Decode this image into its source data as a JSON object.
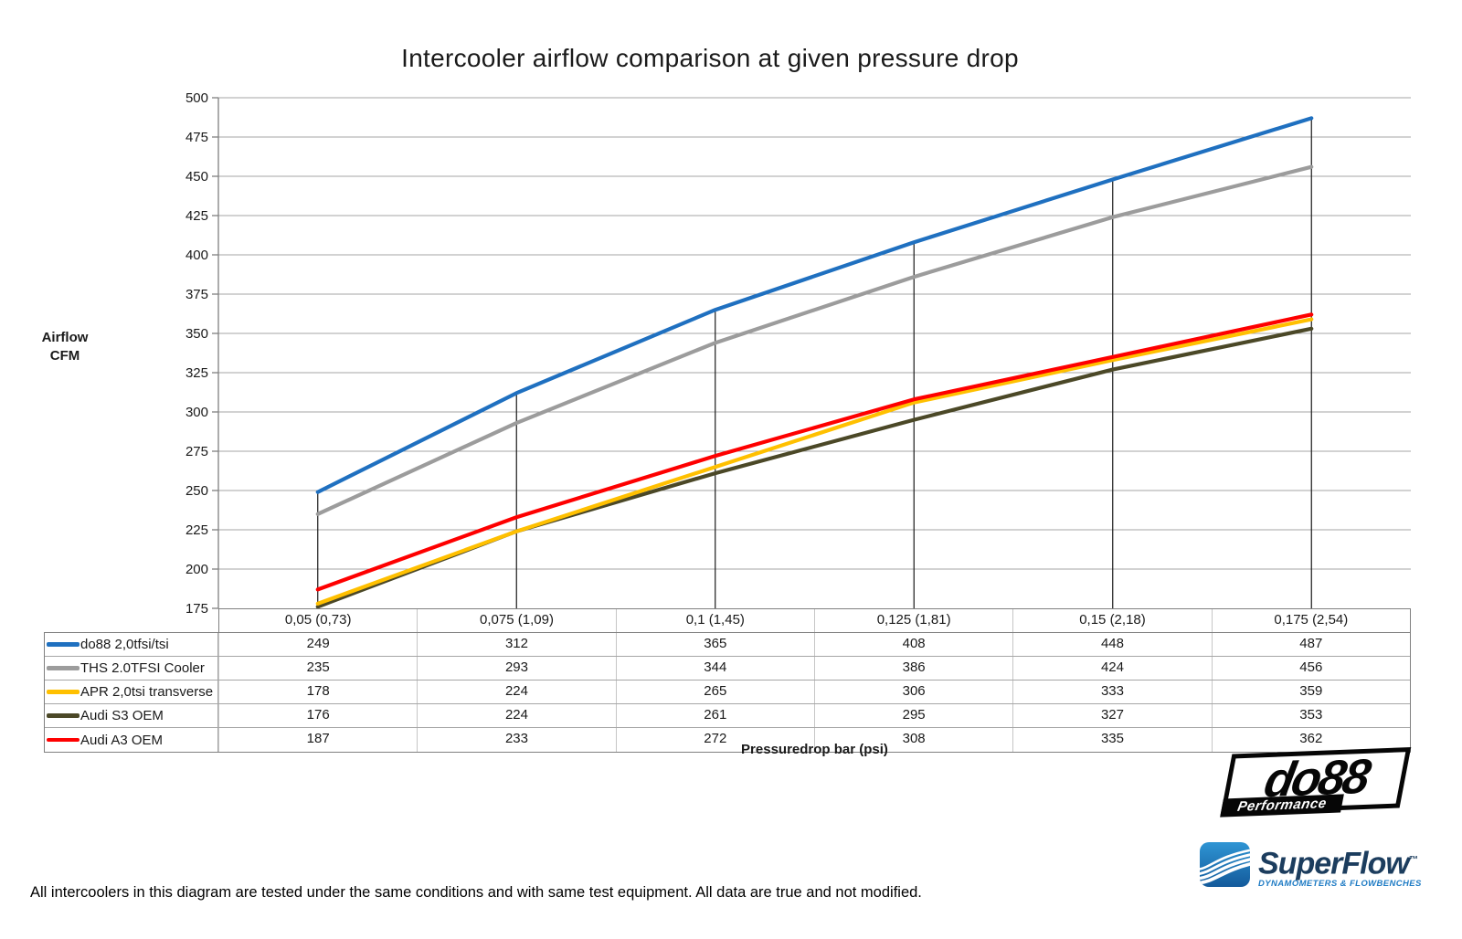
{
  "title": "Intercooler airflow comparison at given pressure drop",
  "y_axis": {
    "label_line1": "Airflow",
    "label_line2": "CFM",
    "ticks": [
      500,
      475,
      450,
      425,
      400,
      375,
      350,
      325,
      300,
      275,
      250,
      225,
      200,
      175
    ],
    "min": 175,
    "max": 500
  },
  "x_axis": {
    "title": "Pressuredrop bar (psi)"
  },
  "chart_data": {
    "type": "line",
    "title": "Intercooler airflow comparison at given pressure drop",
    "xlabel": "Pressuredrop bar (psi)",
    "ylabel": "Airflow CFM",
    "ylim": [
      175,
      500
    ],
    "grid": true,
    "legend_position": "table-left",
    "categories": [
      "0,05 (0,73)",
      "0,075 (1,09)",
      "0,1 (1,45)",
      "0,125 (1,81)",
      "0,15 (2,18)",
      "0,175 (2,54)"
    ],
    "series": [
      {
        "name": "do88 2,0tfsi/tsi",
        "color": "#1f70c0",
        "values": [
          249,
          312,
          365,
          408,
          448,
          487
        ]
      },
      {
        "name": "THS 2.0TFSI Cooler",
        "color": "#9c9c9c",
        "values": [
          235,
          293,
          344,
          386,
          424,
          456
        ]
      },
      {
        "name": "APR 2,0tsi transverse",
        "color": "#ffc000",
        "values": [
          178,
          224,
          265,
          306,
          333,
          359
        ]
      },
      {
        "name": "Audi S3 OEM",
        "color": "#4b4827",
        "values": [
          176,
          224,
          261,
          295,
          327,
          353
        ]
      },
      {
        "name": "Audi A3 OEM",
        "color": "#fe0000",
        "values": [
          187,
          233,
          272,
          308,
          335,
          362
        ]
      }
    ],
    "drop_lines_at_each_category": true
  },
  "colors": {
    "gridline": "#a6a6a6",
    "axis": "#808080",
    "drop_line": "#1a1a1a",
    "table_border": "#808080",
    "table_inner": "#c6c6c6"
  },
  "logos": {
    "do88": {
      "text": "do88",
      "subtext": "Performance"
    },
    "superflow": {
      "text": "SuperFlow",
      "tm": "™",
      "subtext": "DYNAMOMETERS & FLOWBENCHES"
    }
  },
  "footer": {
    "note": "All intercoolers in this diagram are tested under the same conditions and with same test equipment. All data are true and not modified."
  }
}
